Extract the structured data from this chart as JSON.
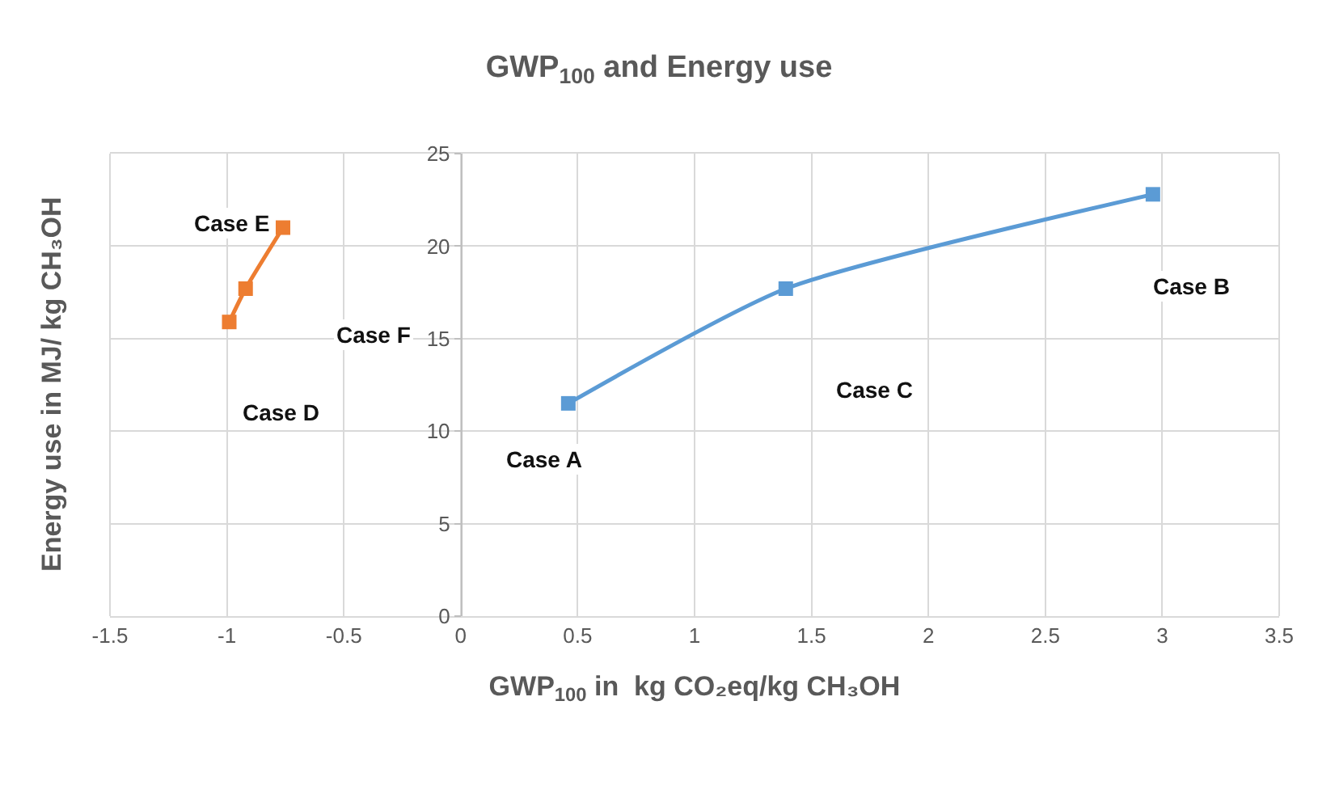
{
  "chart_data": {
    "type": "line",
    "title": "GWP$_{100}$ and Energy use",
    "xlabel": "GWP$_{100}$ in  kg CO₂eq/kg CH₃OH",
    "ylabel": "Energy use in MJ/ kg CH₃OH",
    "series": [
      {
        "color": "#5b9bd5",
        "x": [
          0.46,
          1.39,
          2.96
        ],
        "values": [
          11.5,
          17.7,
          22.8
        ]
      },
      {
        "color": "#ed7d31",
        "x": [
          -0.99,
          -0.92,
          -0.76
        ],
        "values": [
          15.9,
          17.7,
          21
        ]
      }
    ],
    "annotations": [
      "Case A",
      "Case B",
      "Case C",
      "Case D",
      "Case E",
      "Case F"
    ],
    "xlim": [
      -1.5,
      3.5
    ],
    "xticks": [
      -1.5,
      -1,
      -0.5,
      0,
      0.5,
      1,
      1.5,
      2,
      2.5,
      3,
      3.5
    ],
    "ylim": [
      0,
      25
    ],
    "yticks": [
      0,
      5,
      10,
      15,
      20,
      25
    ],
    "grid": true,
    "marker": "square",
    "line_style": "solid"
  }
}
